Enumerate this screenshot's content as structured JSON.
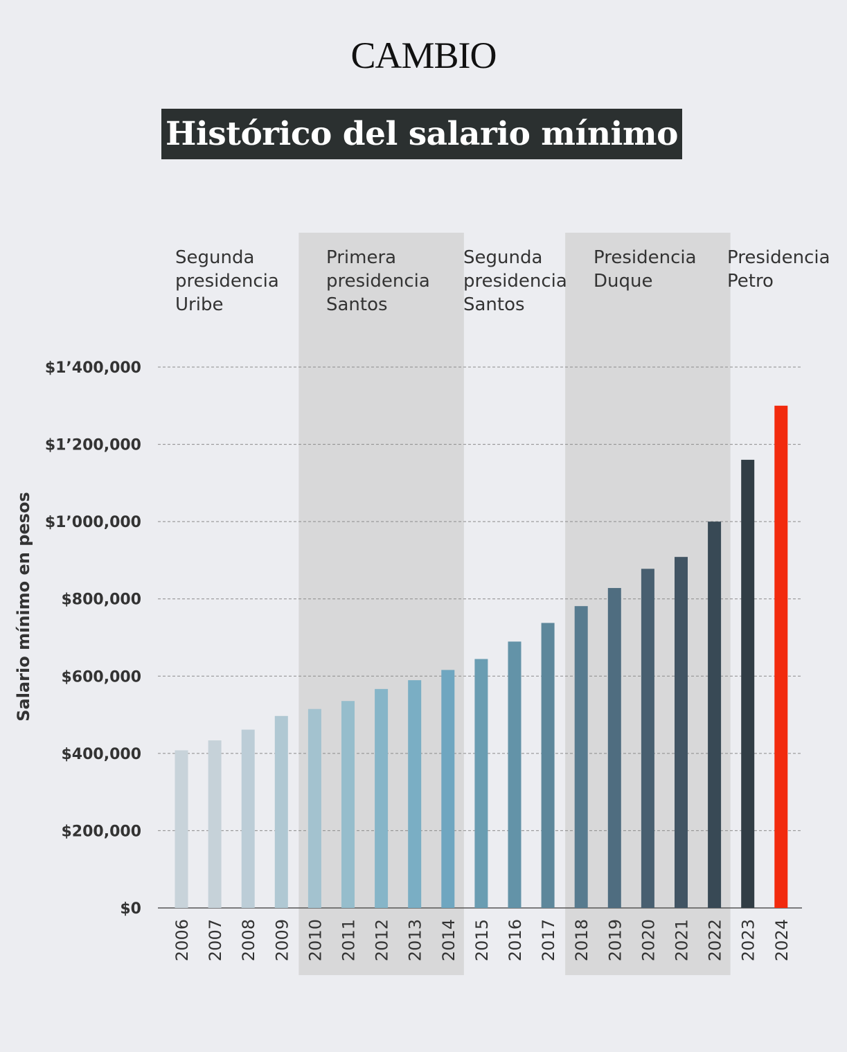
{
  "logo": "CAMBIO",
  "title": "Histórico del salario mínimo",
  "chart_data": {
    "type": "bar",
    "title": "Histórico del salario mínimo",
    "ylabel": "Salario mínimo en pesos",
    "xlabel": "",
    "ylim": [
      0,
      1400000
    ],
    "grid": true,
    "y_ticks": [
      {
        "value": 0,
        "label": "$0"
      },
      {
        "value": 200000,
        "label": "$200,000"
      },
      {
        "value": 400000,
        "label": "$400,000"
      },
      {
        "value": 600000,
        "label": "$600,000"
      },
      {
        "value": 800000,
        "label": "$800,000"
      },
      {
        "value": 1000000,
        "label": "$1’000,000"
      },
      {
        "value": 1200000,
        "label": "$1’200,000"
      },
      {
        "value": 1400000,
        "label": "$1’400,000"
      }
    ],
    "categories": [
      "2006",
      "2007",
      "2008",
      "2009",
      "2010",
      "2011",
      "2012",
      "2013",
      "2014",
      "2015",
      "2016",
      "2017",
      "2018",
      "2019",
      "2020",
      "2021",
      "2022",
      "2023",
      "2024"
    ],
    "values": [
      408000,
      433700,
      461500,
      496900,
      515000,
      535600,
      566700,
      589500,
      616000,
      644350,
      689455,
      737717,
      781242,
      828116,
      877803,
      908526,
      1000000,
      1160000,
      1300000
    ],
    "bar_colors": [
      "#c8d3da",
      "#c6d2d9",
      "#bccdd7",
      "#b0c8d3",
      "#a3c2cf",
      "#96bdcc",
      "#86b5c8",
      "#7aaec4",
      "#6fa6c0",
      "#6a9db2",
      "#6393a8",
      "#5d879b",
      "#577b8f",
      "#4f6d80",
      "#485f70",
      "#415463",
      "#384955",
      "#313d45",
      "#f22a0d"
    ],
    "periods": [
      {
        "label_lines": [
          "Segunda",
          "presidencia",
          "Uribe"
        ],
        "from": "2006",
        "to": "2009",
        "shaded": false
      },
      {
        "label_lines": [
          "Primera",
          "presidencia",
          "Santos"
        ],
        "from": "2010",
        "to": "2014",
        "shaded": true
      },
      {
        "label_lines": [
          "Segunda",
          "presidencia",
          "Santos"
        ],
        "from": "2015",
        "to": "2017",
        "shaded": false
      },
      {
        "label_lines": [
          "Presidencia",
          "Duque"
        ],
        "from": "2018",
        "to": "2022",
        "shaded": true
      },
      {
        "label_lines": [
          "Presidencia",
          "Petro"
        ],
        "from": "2023",
        "to": "2024",
        "shaded": false
      }
    ],
    "shade_color": "#d8d8d9"
  }
}
